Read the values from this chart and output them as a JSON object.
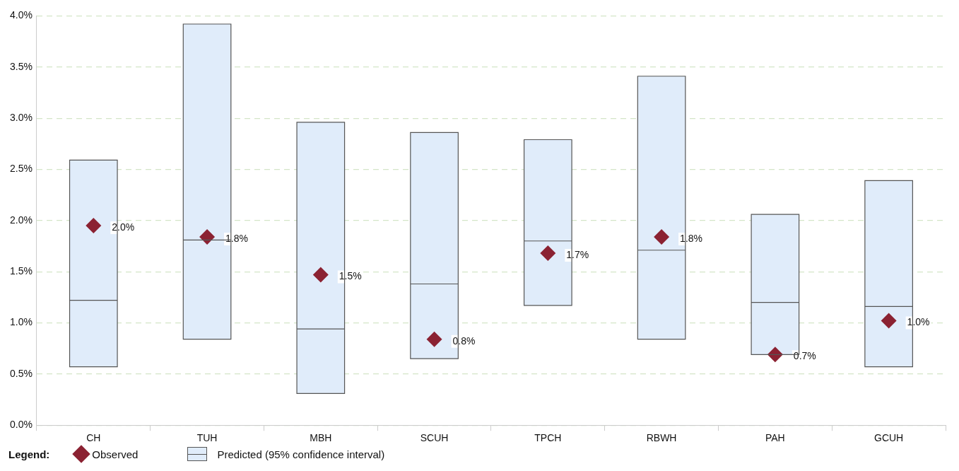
{
  "chart_data": {
    "type": "box",
    "categories": [
      "CH",
      "TUH",
      "MBH",
      "SCUH",
      "TPCH",
      "RBWH",
      "PAH",
      "GCUH"
    ],
    "series": [
      {
        "name": "Observed",
        "type": "scatter",
        "color": "#8b2232",
        "marker": "diamond",
        "x": [
          "CH",
          "TUH",
          "MBH",
          "SCUH",
          "TPCH",
          "RBWH",
          "PAH",
          "GCUH"
        ],
        "values": [
          1.95,
          1.84,
          1.47,
          0.84,
          1.68,
          1.84,
          0.69,
          1.02
        ],
        "value_labels": [
          "2.0%",
          "1.8%",
          "1.5%",
          "0.8%",
          "1.7%",
          "1.8%",
          "0.7%",
          "1.0%"
        ]
      },
      {
        "name": "Predicted (95% confidence interval)",
        "type": "box",
        "color": "#e0ecfa",
        "boxes": [
          {
            "low": 0.57,
            "q1": 0.57,
            "median": 1.22,
            "q3": 2.59,
            "high": 2.59
          },
          {
            "low": 0.84,
            "q1": 0.84,
            "median": 1.81,
            "q3": 3.92,
            "high": 3.92
          },
          {
            "low": 0.31,
            "q1": 0.31,
            "median": 0.94,
            "q3": 2.96,
            "high": 2.96
          },
          {
            "low": 0.65,
            "q1": 0.65,
            "median": 1.38,
            "q3": 2.86,
            "high": 2.86
          },
          {
            "low": 1.17,
            "q1": 1.17,
            "median": 1.8,
            "q3": 2.79,
            "high": 2.79
          },
          {
            "low": 0.84,
            "q1": 0.84,
            "median": 1.71,
            "q3": 3.41,
            "high": 3.41
          },
          {
            "low": 0.69,
            "q1": 0.69,
            "median": 1.2,
            "q3": 2.06,
            "high": 2.06
          },
          {
            "low": 0.57,
            "q1": 0.57,
            "median": 1.16,
            "q3": 2.39,
            "high": 2.39
          }
        ]
      }
    ],
    "ylim": [
      0,
      4
    ],
    "yticks": [
      {
        "value": 0,
        "label": "0.0%"
      },
      {
        "value": 0.5,
        "label": "0.5%"
      },
      {
        "value": 1,
        "label": "1.0%"
      },
      {
        "value": 1.5,
        "label": "1.5%"
      },
      {
        "value": 2,
        "label": "2.0%"
      },
      {
        "value": 2.5,
        "label": "2.5%"
      },
      {
        "value": 3,
        "label": "3.0%"
      },
      {
        "value": 3.5,
        "label": "3.5%"
      },
      {
        "value": 4,
        "label": "4.0%"
      }
    ],
    "grid": "y",
    "legend": "bottom left",
    "legend_title": "Legend:"
  }
}
